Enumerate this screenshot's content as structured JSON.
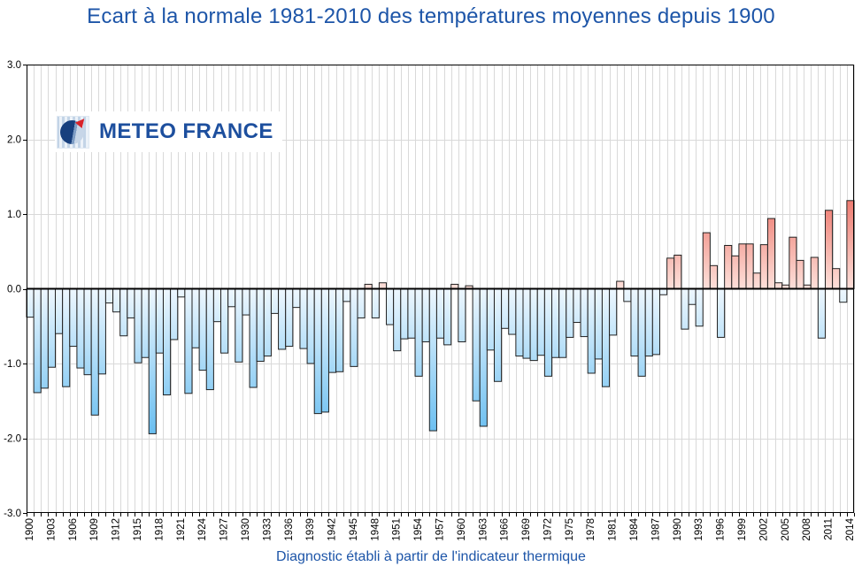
{
  "logo": {
    "text": "METEO FRANCE"
  },
  "footer": "Diagnostic établi à partir de l'indicateur thermique",
  "colors": {
    "accent_blue": "#1d55a8",
    "logo_text_blue": "#1d4f9e",
    "logo_red": "#d8232a",
    "bar_border": "#222222",
    "negative_bar_light": "#eef7fe",
    "negative_bar_deep": "#66bdf0",
    "positive_bar_light": "#fde0da",
    "positive_bar_deep": "#ec7166",
    "grid": "#d9d9d9",
    "axis": "#000000"
  },
  "chart_data": {
    "type": "bar",
    "title": "Ecart à la normale 1981-2010 des températures moyennes depuis 1900",
    "caption": "Diagnostic établi à partir de l'indicateur thermique",
    "xlabel": "",
    "ylabel": "",
    "x_range": [
      1900,
      2014
    ],
    "ylim": [
      -3.0,
      3.0
    ],
    "grid": true,
    "legend": "none",
    "y_tick_labels": [
      "3.0",
      "2.0",
      "1.0",
      "0.0",
      "-1.0",
      "-2.0",
      "-3.0"
    ],
    "y_tick_values": [
      3.0,
      2.0,
      1.0,
      0.0,
      -1.0,
      -2.0,
      -3.0
    ],
    "x_tick_step": 3,
    "x_tick_labels": [
      "1900",
      "1903",
      "1906",
      "1909",
      "1912",
      "1915",
      "1918",
      "1921",
      "1924",
      "1927",
      "1930",
      "1933",
      "1936",
      "1939",
      "1942",
      "1945",
      "1948",
      "1951",
      "1954",
      "1957",
      "1960",
      "1963",
      "1966",
      "1969",
      "1972",
      "1975",
      "1978",
      "1981",
      "1984",
      "1987",
      "1990",
      "1993",
      "1996",
      "1999",
      "2002",
      "2005",
      "2008",
      "2011",
      "2014"
    ],
    "values": [
      -0.38,
      -1.39,
      -1.33,
      -1.05,
      -0.6,
      -1.31,
      -0.77,
      -1.06,
      -1.15,
      -1.69,
      -1.14,
      -0.19,
      -0.31,
      -0.63,
      -0.39,
      -0.99,
      -0.92,
      -1.94,
      -0.86,
      -1.42,
      -0.68,
      -0.11,
      -1.4,
      -0.79,
      -1.09,
      -1.35,
      -0.44,
      -0.86,
      -0.24,
      -0.98,
      -0.35,
      -1.32,
      -0.97,
      -0.9,
      -0.33,
      -0.81,
      -0.77,
      -0.25,
      -0.8,
      -1.0,
      -1.67,
      -1.65,
      -1.12,
      -1.11,
      -0.17,
      -1.04,
      -0.39,
      0.06,
      -0.39,
      0.08,
      -0.48,
      -0.83,
      -0.67,
      -0.66,
      -1.17,
      -0.71,
      -1.9,
      -0.66,
      -0.75,
      0.06,
      -0.71,
      0.04,
      -1.5,
      -1.84,
      -0.82,
      -1.24,
      -0.53,
      -0.61,
      -0.9,
      -0.93,
      -0.96,
      -0.89,
      -1.17,
      -0.92,
      -0.92,
      -0.65,
      -0.45,
      -0.64,
      -1.13,
      -0.94,
      -1.31,
      -0.62,
      0.1,
      -0.17,
      -0.9,
      -1.17,
      -0.9,
      -0.88,
      -0.08,
      0.41,
      0.45,
      -0.54,
      -0.21,
      -0.5,
      0.75,
      0.31,
      -0.65,
      0.58,
      0.44,
      0.6,
      0.6,
      0.21,
      0.59,
      0.94,
      0.08,
      0.05,
      0.69,
      0.38,
      0.05,
      0.42,
      -0.66,
      1.05,
      0.27,
      -0.18,
      1.18
    ]
  }
}
